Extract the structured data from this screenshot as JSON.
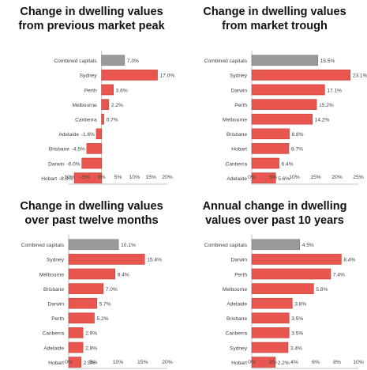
{
  "chart_data": [
    {
      "type": "bar",
      "orientation": "horizontal",
      "title_lines": [
        "Change in dwelling values",
        "from previous market peak"
      ],
      "categories": [
        "Combined capitals",
        "Sydney",
        "Perth",
        "Melbourne",
        "Canberra",
        "Adelaide",
        "Brisbane",
        "Darwin",
        "Hobart"
      ],
      "values": [
        7.0,
        17.0,
        3.6,
        2.2,
        0.7,
        -1.6,
        -4.5,
        -6.0,
        -8.3
      ],
      "value_labels": [
        "7.0%",
        "17.0%",
        "3.6%",
        "2.2%",
        "0.7%",
        "-1.6%",
        "-4.5%",
        "-6.0%",
        "-8.3%"
      ],
      "xlim": [
        -10,
        20
      ],
      "xticks": [
        -10,
        -5,
        0,
        5,
        10,
        15,
        20
      ],
      "xtick_labels": [
        "-10%",
        "-5%",
        "0%",
        "5%",
        "10%",
        "15%",
        "20%"
      ],
      "highlight_index": 0,
      "grid": false
    },
    {
      "type": "bar",
      "orientation": "horizontal",
      "title_lines": [
        "Change in dwelling values",
        "from market trough"
      ],
      "categories": [
        "Combined capitals",
        "Sydney",
        "Darwin",
        "Perth",
        "Melbourne",
        "Brisbane",
        "Hobart",
        "Canberra",
        "Adelaide"
      ],
      "values": [
        15.5,
        23.1,
        17.1,
        15.2,
        14.2,
        8.8,
        8.7,
        6.4,
        5.6
      ],
      "value_labels": [
        "15.5%",
        "23.1%",
        "17.1%",
        "15.2%",
        "14.2%",
        "8.8%",
        "8.7%",
        "6.4%",
        "5.6%"
      ],
      "xlim": [
        0,
        25
      ],
      "xticks": [
        0,
        5,
        10,
        15,
        20,
        25
      ],
      "xtick_labels": [
        "0%",
        "5%",
        "10%",
        "15%",
        "20%",
        "25%"
      ],
      "highlight_index": 0,
      "grid": false
    },
    {
      "type": "bar",
      "orientation": "horizontal",
      "title_lines": [
        "Change in dwelling values",
        "over past twelve months"
      ],
      "categories": [
        "Combined capitals",
        "Sydney",
        "Melbourne",
        "Brisbane",
        "Darwin",
        "Perth",
        "Canberra",
        "Adelaide",
        "Hobart"
      ],
      "values": [
        10.1,
        15.4,
        9.4,
        7.0,
        5.7,
        5.2,
        2.9,
        2.9,
        2.5
      ],
      "value_labels": [
        "10.1%",
        "15.4%",
        "9.4%",
        "7.0%",
        "5.7%",
        "5.2%",
        "2.9%",
        "2.9%",
        "2.5%"
      ],
      "xlim": [
        0,
        20
      ],
      "xticks": [
        0,
        5,
        10,
        15,
        20
      ],
      "xtick_labels": [
        "0%",
        "5%",
        "10%",
        "15%",
        "20%"
      ],
      "highlight_index": 0,
      "grid": false
    },
    {
      "type": "bar",
      "orientation": "horizontal",
      "title_lines": [
        "Annual change in dwelling",
        "values over past 10 years"
      ],
      "categories": [
        "Combined capitals",
        "Darwin",
        "Perth",
        "Melbourne",
        "Adelaide",
        "Brisbane",
        "Canberra",
        "Sydney",
        "Hobart"
      ],
      "values": [
        4.5,
        8.4,
        7.4,
        5.8,
        3.8,
        3.5,
        3.5,
        3.4,
        2.2
      ],
      "value_labels": [
        "4.5%",
        "8.4%",
        "7.4%",
        "5.8%",
        "3.8%",
        "3.5%",
        "3.5%",
        "3.4%",
        "2.2%"
      ],
      "xlim": [
        0,
        10
      ],
      "xticks": [
        0,
        2,
        4,
        6,
        8,
        10
      ],
      "xtick_labels": [
        "0%",
        "2%",
        "4%",
        "6%",
        "8%",
        "10%"
      ],
      "highlight_index": 0,
      "grid": false
    }
  ],
  "colors": {
    "bar": "#e8564f",
    "bar_edge": "#c43c35",
    "highlight_bar": "#9a9a9a",
    "highlight_edge": "#7a7a7a",
    "axis": "#bfbfbf",
    "text": "#404040"
  }
}
